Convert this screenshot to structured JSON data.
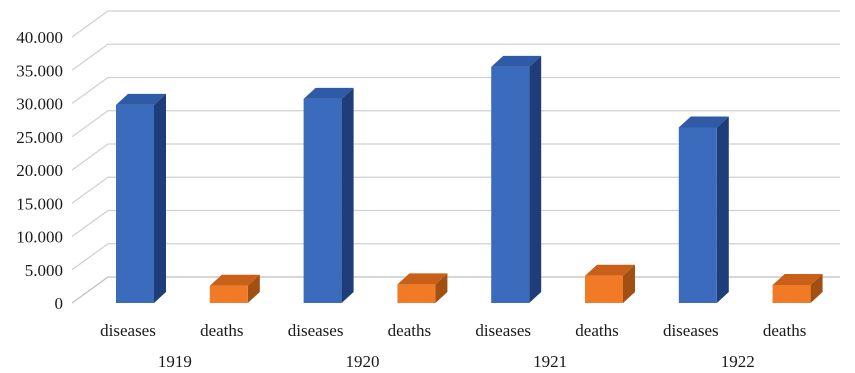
{
  "chart_data": {
    "type": "bar",
    "title": "",
    "xlabel": "",
    "ylabel": "",
    "ylim": [
      0,
      40000
    ],
    "y_ticks": [
      "0",
      "5.000",
      "10.000",
      "15.000",
      "20.000",
      "25.000",
      "30.000",
      "35.000",
      "40.000"
    ],
    "grid": true,
    "style": "3d-column",
    "groups": [
      "1919",
      "1920",
      "1921",
      "1922"
    ],
    "categories": [
      {
        "label": "diseases",
        "group": "1919",
        "value": 29800
      },
      {
        "label": "deaths",
        "group": "1919",
        "value": 2600
      },
      {
        "label": "diseases",
        "group": "1920",
        "value": 30700
      },
      {
        "label": "deaths",
        "group": "1920",
        "value": 2800
      },
      {
        "label": "diseases",
        "group": "1921",
        "value": 35500
      },
      {
        "label": "deaths",
        "group": "1921",
        "value": 4100
      },
      {
        "label": "diseases",
        "group": "1922",
        "value": 26400
      },
      {
        "label": "deaths",
        "group": "1922",
        "value": 2700
      }
    ],
    "colors": {
      "diseases": {
        "front": "#3a6bbd",
        "side": "#1f3d78",
        "top": "#2f5aa6"
      },
      "deaths": {
        "front": "#f07a26",
        "side": "#a24f12",
        "top": "#c9601a"
      }
    }
  }
}
